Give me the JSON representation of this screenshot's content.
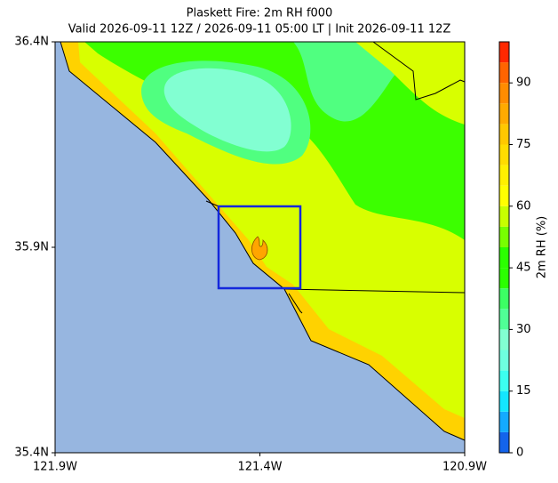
{
  "map": {
    "title": "Plaskett Fire: 2m RH f000",
    "subtitle": "Valid 2026-09-11 12Z / 2026-09-11 05:00 LT | Init 2026-09-11 12Z",
    "xlim": [
      -121.9,
      -120.9
    ],
    "ylim": [
      35.4,
      36.4
    ],
    "xticks": [
      {
        "value": -121.9,
        "label": "121.9W"
      },
      {
        "value": -121.4,
        "label": "121.4W"
      },
      {
        "value": -120.9,
        "label": "120.9W"
      }
    ],
    "yticks": [
      {
        "value": 35.4,
        "label": "35.4N"
      },
      {
        "value": 35.9,
        "label": "35.9N"
      },
      {
        "value": 36.4,
        "label": "36.4N"
      }
    ],
    "colorbar": {
      "label": "2m RH (%)",
      "lim": [
        0,
        100
      ],
      "ticks": [
        0,
        15,
        30,
        45,
        60,
        75,
        90
      ],
      "levels": [
        0,
        5,
        10,
        15,
        20,
        25,
        30,
        35,
        40,
        45,
        50,
        55,
        60,
        65,
        70,
        75,
        80,
        85,
        90,
        95,
        100
      ],
      "colors": [
        "#1464eb",
        "#14aaff",
        "#14e6ff",
        "#3cfff0",
        "#6effe0",
        "#82ffd2",
        "#50ff96",
        "#3cff64",
        "#2bff00",
        "#2bff00",
        "#78ff00",
        "#c8ff00",
        "#ffff00",
        "#fff000",
        "#ffdc00",
        "#ffc800",
        "#ffaa00",
        "#ff8c00",
        "#ff6400",
        "#ff2800"
      ]
    }
  }
}
